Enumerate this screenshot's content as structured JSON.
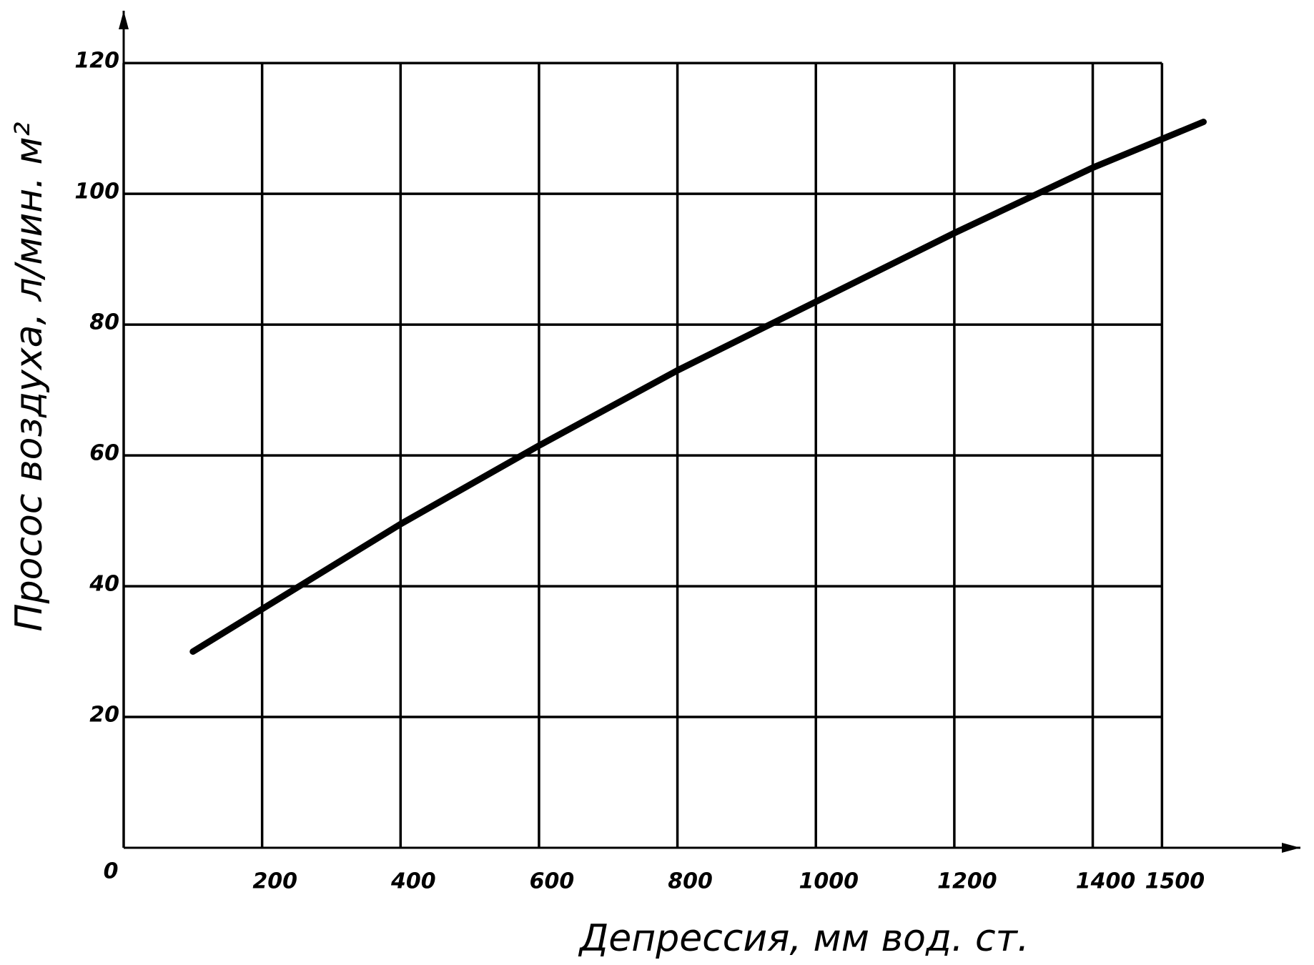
{
  "chart_data": {
    "type": "line",
    "x_label": "Депрессия,  мм вод. ст.",
    "y_label": "Просос воздуха,  л/мин. м²",
    "x": [
      100,
      200,
      400,
      600,
      800,
      1000,
      1200,
      1400,
      1560
    ],
    "series": [
      {
        "name": "Просос воздуха",
        "color": "#000000",
        "values": [
          30,
          36.5,
          49.5,
          61.5,
          73,
          83.5,
          94,
          104,
          111
        ]
      }
    ],
    "xlim": [
      0,
      1700
    ],
    "ylim": [
      0,
      128
    ],
    "xticks": [
      0,
      200,
      400,
      600,
      800,
      1000,
      1200,
      1400,
      1500
    ],
    "yticks": [
      20,
      40,
      60,
      80,
      100,
      120
    ],
    "grid": true
  }
}
